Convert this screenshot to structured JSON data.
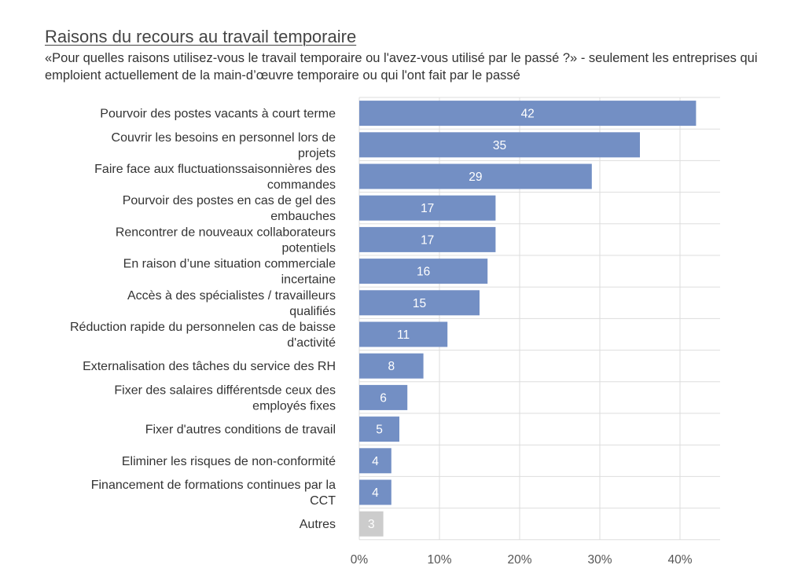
{
  "chart_data": {
    "type": "bar",
    "orientation": "horizontal",
    "title": "Raisons du recours au travail temporaire",
    "subtitle": "«Pour quelles raisons utilisez-vous le travail temporaire ou l'avez-vous utilisé par le passé ?» - seulement les entreprises qui emploient actuellement de la main-d’œuvre temporaire ou qui l'ont fait par le passé",
    "categories": [
      [
        "Pourvoir des postes vacants à court terme"
      ],
      [
        "Couvrir les besoins en personnel lors de",
        "projets"
      ],
      [
        "Faire face aux fluctuationssaisonnières des",
        "commandes"
      ],
      [
        "Pourvoir des postes en cas de gel des",
        "embauches"
      ],
      [
        "Rencontrer de nouveaux collaborateurs",
        "potentiels"
      ],
      [
        "En raison d’une situation commerciale",
        "incertaine"
      ],
      [
        "Accès à des spécialistes / travailleurs",
        "qualifiés"
      ],
      [
        "Réduction rapide du personnelen cas de baisse",
        "d'activité"
      ],
      [
        "Externalisation des tâches du service des RH"
      ],
      [
        "Fixer des salaires différentsde ceux des",
        "employés fixes"
      ],
      [
        "Fixer d'autres conditions de travail"
      ],
      [
        "Eliminer les risques de non-conformité"
      ],
      [
        "Financement de formations continues par la",
        "CCT"
      ],
      [
        "Autres"
      ]
    ],
    "values": [
      42,
      35,
      29,
      17,
      17,
      16,
      15,
      11,
      8,
      6,
      5,
      4,
      4,
      3
    ],
    "data_labels": [
      "42",
      "35",
      "29",
      "17",
      "17",
      "16",
      "15",
      "11",
      "8",
      "6",
      "5",
      "4",
      "4",
      "3"
    ],
    "highlight_colors": [
      "#738fc4",
      "#738fc4",
      "#738fc4",
      "#738fc4",
      "#738fc4",
      "#738fc4",
      "#738fc4",
      "#738fc4",
      "#738fc4",
      "#738fc4",
      "#738fc4",
      "#738fc4",
      "#738fc4",
      "#cccccc"
    ],
    "xlim": [
      0,
      45
    ],
    "xticks": [
      0,
      10,
      20,
      30,
      40
    ],
    "xtick_labels": [
      "0%",
      "10%",
      "20%",
      "30%",
      "40%"
    ],
    "grid": true,
    "legend": "none"
  }
}
